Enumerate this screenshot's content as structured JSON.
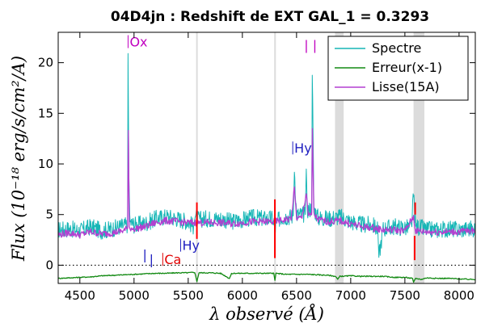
{
  "chart_data": {
    "type": "line",
    "title": "04D4jn : Redshift de EXT GAL_1 = 0.3293",
    "xlabel": "λ observé (Å)",
    "ylabel": "Flux (10⁻¹⁸ erg/s/cm²/A)",
    "xlim": [
      4300,
      8150
    ],
    "ylim": [
      -1.8,
      23
    ],
    "xticks": [
      "4500",
      "5000",
      "5500",
      "6000",
      "6500",
      "7000",
      "7500",
      "8000"
    ],
    "yticks": [
      "0",
      "5",
      "10",
      "15",
      "20"
    ],
    "grid": false,
    "legend_position": "top-right",
    "zero_line": 0,
    "series": [
      {
        "name": "Spectre",
        "color": "#17b6b6",
        "x": [
          4300,
          4400,
          4500,
          4600,
          4700,
          4800,
          4900,
          4940,
          4945,
          4952,
          4960,
          5000,
          5100,
          5200,
          5300,
          5400,
          5500,
          5550,
          5560,
          5580,
          5600,
          5650,
          5700,
          5800,
          5900,
          6000,
          6100,
          6200,
          6280,
          6300,
          6320,
          6350,
          6400,
          6450,
          6470,
          6480,
          6500,
          6550,
          6580,
          6590,
          6600,
          6620,
          6640,
          6645,
          6660,
          6700,
          6800,
          6900,
          7000,
          7100,
          7200,
          7250,
          7260,
          7300,
          7400,
          7500,
          7560,
          7580,
          7600,
          7650,
          7700,
          7800,
          7900,
          8000,
          8100,
          8150
        ],
        "y": [
          3.5,
          3.6,
          3.4,
          3.8,
          3.4,
          3.6,
          3.9,
          4.0,
          20.9,
          9.0,
          4.3,
          4.0,
          4.1,
          4.6,
          4.8,
          4.6,
          4.3,
          3.8,
          5.3,
          4.6,
          4.5,
          4.6,
          4.6,
          4.6,
          4.3,
          4.5,
          4.7,
          4.6,
          4.6,
          3.5,
          4.2,
          4.7,
          4.8,
          4.8,
          4.9,
          9.7,
          5.0,
          5.0,
          5.0,
          9.5,
          5.5,
          5.5,
          5.7,
          19.5,
          5.6,
          4.7,
          4.6,
          4.8,
          4.3,
          4.0,
          4.0,
          3.5,
          0.9,
          3.6,
          3.8,
          3.7,
          3.7,
          6.9,
          3.8,
          3.7,
          3.5,
          3.5,
          3.6,
          3.5,
          3.6,
          3.6
        ]
      },
      {
        "name": "Erreur(x-1)",
        "color": "#138a13",
        "x": [
          4300,
          4400,
          4500,
          4600,
          4700,
          4800,
          4900,
          5000,
          5100,
          5200,
          5300,
          5400,
          5500,
          5560,
          5580,
          5600,
          5700,
          5800,
          5880,
          5900,
          5920,
          6000,
          6100,
          6200,
          6290,
          6300,
          6310,
          6400,
          6500,
          6600,
          6700,
          6800,
          6860,
          6880,
          6900,
          7000,
          7100,
          7200,
          7300,
          7400,
          7500,
          7570,
          7580,
          7600,
          7650,
          7700,
          7800,
          7900,
          8000,
          8100,
          8150
        ],
        "y": [
          -1.3,
          -1.25,
          -1.2,
          -1.15,
          -1.05,
          -1.0,
          -0.95,
          -0.9,
          -0.85,
          -0.8,
          -0.8,
          -0.75,
          -0.75,
          -0.7,
          -1.6,
          -0.75,
          -0.75,
          -0.8,
          -1.3,
          -0.85,
          -0.8,
          -0.8,
          -0.8,
          -0.8,
          -0.8,
          -1.5,
          -0.8,
          -0.9,
          -0.9,
          -0.9,
          -0.95,
          -1.0,
          -1.1,
          -1.4,
          -1.1,
          -1.05,
          -1.1,
          -1.1,
          -1.1,
          -1.2,
          -1.2,
          -1.3,
          -1.7,
          -1.3,
          -1.4,
          -1.25,
          -1.3,
          -1.3,
          -1.35,
          -1.4,
          -1.4
        ]
      },
      {
        "name": "Lisse(15A)",
        "color": "#b43fd0",
        "x": [
          4300,
          4400,
          4500,
          4600,
          4700,
          4800,
          4900,
          4940,
          4948,
          4956,
          4970,
          5000,
          5100,
          5200,
          5300,
          5400,
          5500,
          5600,
          5700,
          5800,
          5900,
          6000,
          6100,
          6200,
          6300,
          6400,
          6450,
          6480,
          6500,
          6550,
          6590,
          6610,
          6640,
          6646,
          6660,
          6700,
          6800,
          6900,
          7000,
          7100,
          7200,
          7300,
          7400,
          7500,
          7580,
          7600,
          7700,
          7800,
          7900,
          8000,
          8100,
          8150
        ],
        "y": [
          3.0,
          3.2,
          3.0,
          3.3,
          3.1,
          3.2,
          3.4,
          3.6,
          13.3,
          3.8,
          3.7,
          3.6,
          3.8,
          4.2,
          4.4,
          4.3,
          4.2,
          4.2,
          4.2,
          4.2,
          4.1,
          4.2,
          4.3,
          4.3,
          4.3,
          4.5,
          4.6,
          7.5,
          4.7,
          4.6,
          7.2,
          4.8,
          5.0,
          13.5,
          5.0,
          4.5,
          4.3,
          4.4,
          4.1,
          3.8,
          3.7,
          3.5,
          3.5,
          3.4,
          4.8,
          3.4,
          3.3,
          3.3,
          3.3,
          3.3,
          3.4,
          3.4
        ]
      }
    ],
    "bands": [
      {
        "from": 5573,
        "to": 5583,
        "color": "#dcdcdc"
      },
      {
        "from": 6294,
        "to": 6305,
        "color": "#dcdcdc"
      },
      {
        "from": 6855,
        "to": 6935,
        "color": "#dcdcdc"
      },
      {
        "from": 7580,
        "to": 7680,
        "color": "#dcdcdc"
      }
    ],
    "red_marks": [
      {
        "x": 5580,
        "y1": 2.6,
        "y2": 6.2
      },
      {
        "x": 6300,
        "y1": 0.7,
        "y2": 6.5
      },
      {
        "x": 7590,
        "y1": 0.5,
        "y2": 2.9
      },
      {
        "x": 7595,
        "y1": 5.0,
        "y2": 6.2
      }
    ],
    "annotations": [
      {
        "text": "Ox",
        "x": 4945,
        "y": 21.6,
        "color": "#c000c0",
        "bar": true
      },
      {
        "text": "| |",
        "x": 6570,
        "y": 21.3,
        "color": "#c000c0",
        "bar": false
      },
      {
        "text": "Hy",
        "x": 6465,
        "y": 11.1,
        "color": "#2020c0",
        "bar": true
      },
      {
        "text": "|",
        "x": 5080,
        "y": 0.6,
        "color": "#2020c0",
        "bar": false
      },
      {
        "text": "|",
        "x": 5140,
        "y": 0.1,
        "color": "#2020c0",
        "bar": false
      },
      {
        "text": "Ca",
        "x": 5265,
        "y": 0.1,
        "color": "#e00000",
        "bar": true
      },
      {
        "text": "Hy",
        "x": 5430,
        "y": 1.5,
        "color": "#2020c0",
        "bar": true
      }
    ]
  }
}
